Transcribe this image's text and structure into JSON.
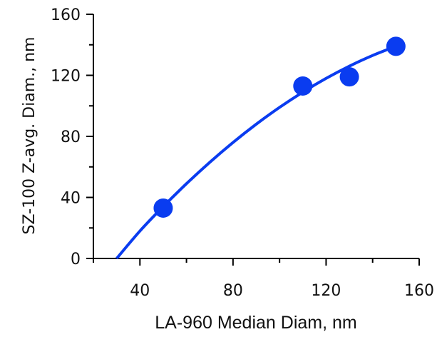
{
  "chart_data": {
    "type": "scatter",
    "title": "",
    "xlabel": "LA-960 Median Diam, nm",
    "ylabel": "SZ-100 Z-avg. Diam., nm",
    "xlim": [
      20,
      160
    ],
    "ylim": [
      0,
      160
    ],
    "xticks": [
      40,
      80,
      120,
      160
    ],
    "yticks": [
      0,
      40,
      80,
      120,
      160
    ],
    "x_tick_labels": [
      "40",
      "80",
      "120",
      "160"
    ],
    "y_tick_labels": [
      "0",
      "40",
      "80",
      "120",
      "160"
    ],
    "grid": false,
    "legend": "none",
    "series": [
      {
        "points": [
          {
            "x": 50,
            "y": 33
          },
          {
            "x": 110,
            "y": 113
          },
          {
            "x": 130,
            "y": 119
          },
          {
            "x": 150,
            "y": 139
          }
        ]
      }
    ],
    "fit_curve": [
      {
        "x": 30,
        "y": 0
      },
      {
        "x": 40,
        "y": 18
      },
      {
        "x": 50,
        "y": 34
      },
      {
        "x": 60,
        "y": 49
      },
      {
        "x": 70,
        "y": 63
      },
      {
        "x": 80,
        "y": 76
      },
      {
        "x": 90,
        "y": 88
      },
      {
        "x": 100,
        "y": 99
      },
      {
        "x": 110,
        "y": 109
      },
      {
        "x": 120,
        "y": 118
      },
      {
        "x": 130,
        "y": 126
      },
      {
        "x": 140,
        "y": 133
      },
      {
        "x": 150,
        "y": 139
      }
    ],
    "colors": {
      "series": "#0a3cf0",
      "axes": "#000000"
    }
  }
}
